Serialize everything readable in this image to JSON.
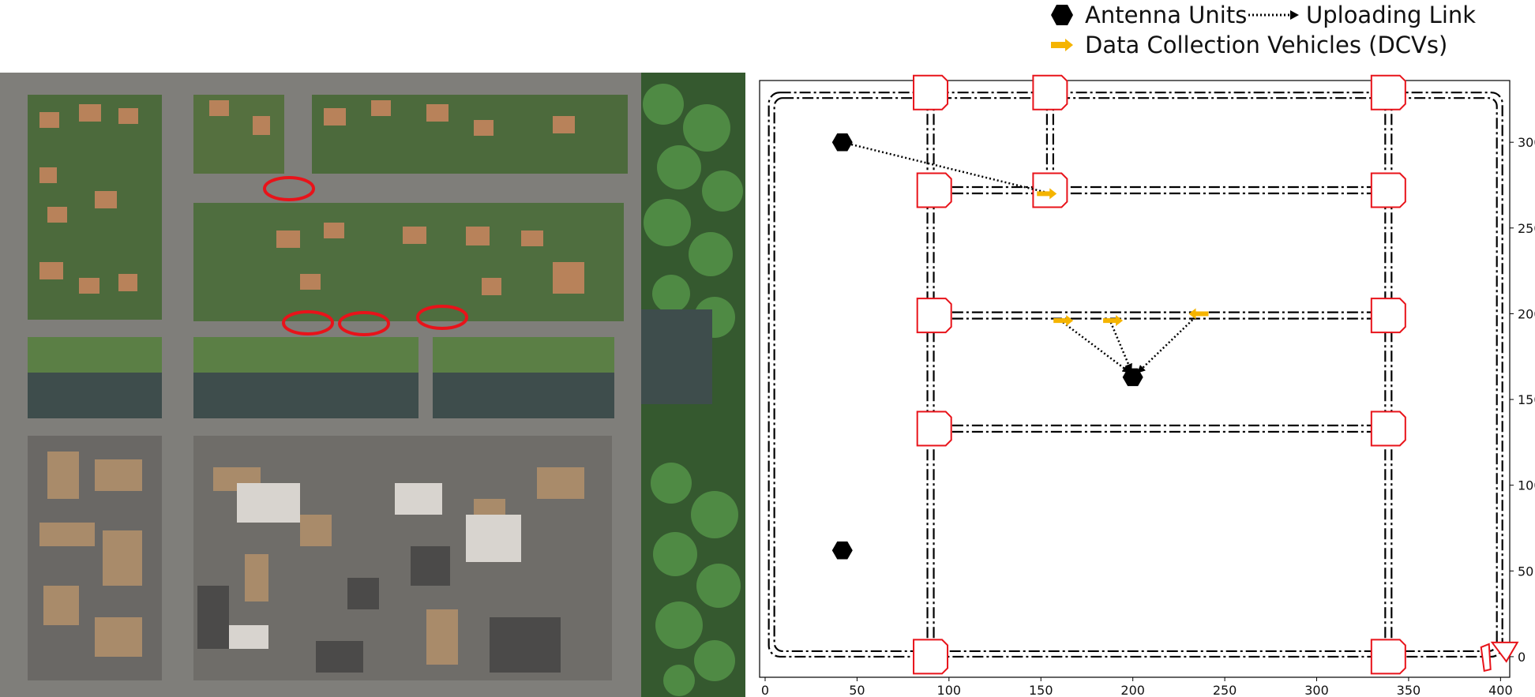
{
  "legend": {
    "antenna_label": "Antenna Units",
    "uploading_label": "Uploading Link",
    "dcv_label": "Data Collection Vehicles (DCVs)",
    "antenna_color": "#000000",
    "dcv_color": "#f5b400",
    "link_color": "#000000"
  },
  "aerial": {
    "description_icon": "aerial-town-map",
    "marker_color": "#e8131a",
    "marker_count": 4
  },
  "chart_data": {
    "type": "scatter",
    "title": "",
    "xlabel": "",
    "ylabel": "",
    "xlim": [
      -3,
      405
    ],
    "ylim": [
      -12,
      336
    ],
    "x_ticks": [
      0,
      50,
      100,
      150,
      200,
      250,
      300,
      350,
      400
    ],
    "y_ticks": [
      0,
      50,
      100,
      150,
      200,
      250,
      300
    ],
    "y_axis_side": "right",
    "grid": false,
    "road_color": "#000000",
    "intersection_color": "#e8131a",
    "horizontal_roads": [
      {
        "y": 329,
        "x": [
          2,
          401
        ]
      },
      {
        "y": 272,
        "x": [
          91,
          340
        ]
      },
      {
        "y": 199,
        "x": [
          91,
          340
        ]
      },
      {
        "y": 133,
        "x": [
          91,
          340
        ]
      },
      {
        "y": 0,
        "x": [
          2,
          401
        ]
      }
    ],
    "vertical_roads": [
      {
        "x": 90,
        "y": [
          0,
          329
        ]
      },
      {
        "x": 155,
        "y": [
          272,
          329
        ]
      },
      {
        "x": 339,
        "y": [
          0,
          329
        ]
      }
    ],
    "intersections": [
      {
        "x": 90,
        "y": 329
      },
      {
        "x": 155,
        "y": 329
      },
      {
        "x": 339,
        "y": 329
      },
      {
        "x": 92,
        "y": 272
      },
      {
        "x": 155,
        "y": 272
      },
      {
        "x": 339,
        "y": 272
      },
      {
        "x": 92,
        "y": 199
      },
      {
        "x": 339,
        "y": 199
      },
      {
        "x": 92,
        "y": 133
      },
      {
        "x": 339,
        "y": 133
      },
      {
        "x": 90,
        "y": 0
      },
      {
        "x": 339,
        "y": 0
      }
    ],
    "antennas": [
      {
        "x": 42,
        "y": 300
      },
      {
        "x": 200,
        "y": 163
      },
      {
        "x": 42,
        "y": 62
      }
    ],
    "dcvs": [
      {
        "x": 153,
        "y": 270,
        "dir": 1
      },
      {
        "x": 162,
        "y": 196,
        "dir": 1
      },
      {
        "x": 189,
        "y": 196,
        "dir": 1
      },
      {
        "x": 236,
        "y": 200,
        "dir": -1
      }
    ],
    "links": [
      {
        "from": [
          152,
          271
        ],
        "to": [
          42,
          300
        ]
      },
      {
        "from": [
          162,
          195
        ],
        "to": [
          198,
          166
        ]
      },
      {
        "from": [
          188,
          195
        ],
        "to": [
          199,
          167
        ]
      },
      {
        "from": [
          234,
          198
        ],
        "to": [
          203,
          166
        ]
      }
    ]
  }
}
